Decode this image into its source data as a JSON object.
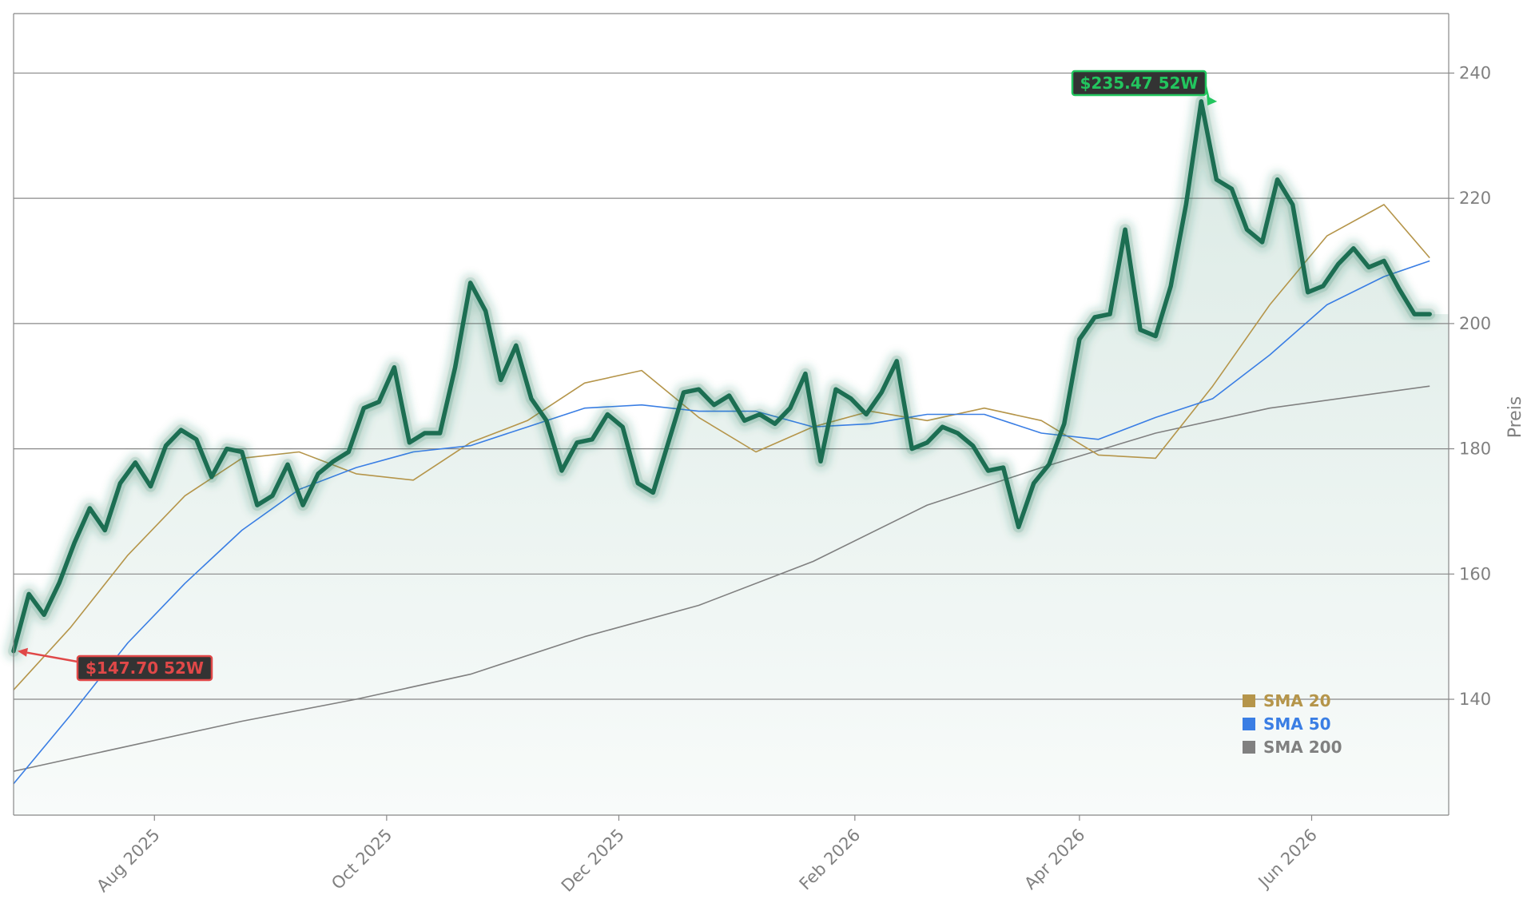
{
  "chart_data": {
    "type": "line",
    "ylabel": "Preis",
    "xlabel": "",
    "ylim": [
      121.5,
      249.5
    ],
    "x_range": [
      "2025-06-25",
      "2026-07-07"
    ],
    "y_ticks": [
      140,
      160,
      180,
      200,
      220,
      240
    ],
    "y_tick_labels": [
      "140",
      "160",
      "180",
      "200",
      "220",
      "240"
    ],
    "x_ticks": [
      "2025-08-01",
      "2025-10-01",
      "2025-12-01",
      "2026-02-01",
      "2026-04-01",
      "2026-06-01"
    ],
    "x_tick_labels": [
      "Aug 2025",
      "Oct 2025",
      "Dec 2025",
      "Feb 2026",
      "Apr 2026",
      "Jun 2026"
    ],
    "grid": "horizontal",
    "legend_position": "bottom-right",
    "last_price": 201.5,
    "colors": {
      "price": "#1c6e52",
      "price_glow": "#1c7a5a",
      "fill": "#1c7a5a",
      "sma20": "#b5954a",
      "sma50": "#3a7ee4",
      "sma200": "#808080",
      "high_marker": "#22c55e",
      "low_marker": "#e04848",
      "label_bg": "#333333",
      "axis": "#888888",
      "grid": "#888888",
      "tick_text": "#808080"
    },
    "annotations": [
      {
        "id": "high",
        "text": "$235.47 52W",
        "x": "2026-05-08",
        "y": 235.47
      },
      {
        "id": "low",
        "text": "$147.70 52W",
        "x": "2025-06-26",
        "y": 147.7
      }
    ],
    "series": [
      {
        "name": "Price",
        "color": "#1c6e52",
        "x": [
          "2025-06-25",
          "2025-06-29",
          "2025-07-03",
          "2025-07-07",
          "2025-07-11",
          "2025-07-15",
          "2025-07-19",
          "2025-07-23",
          "2025-07-27",
          "2025-07-31",
          "2025-08-04",
          "2025-08-08",
          "2025-08-12",
          "2025-08-16",
          "2025-08-20",
          "2025-08-24",
          "2025-08-28",
          "2025-09-01",
          "2025-09-05",
          "2025-09-09",
          "2025-09-13",
          "2025-09-17",
          "2025-09-21",
          "2025-09-25",
          "2025-09-29",
          "2025-10-03",
          "2025-10-07",
          "2025-10-11",
          "2025-10-15",
          "2025-10-19",
          "2025-10-23",
          "2025-10-27",
          "2025-10-31",
          "2025-11-04",
          "2025-11-08",
          "2025-11-12",
          "2025-11-16",
          "2025-11-20",
          "2025-11-24",
          "2025-11-28",
          "2025-12-02",
          "2025-12-06",
          "2025-12-10",
          "2025-12-14",
          "2025-12-18",
          "2025-12-22",
          "2025-12-26",
          "2025-12-30",
          "2026-01-03",
          "2026-01-07",
          "2026-01-11",
          "2026-01-15",
          "2026-01-19",
          "2026-01-23",
          "2026-01-27",
          "2026-01-31",
          "2026-02-04",
          "2026-02-08",
          "2026-02-12",
          "2026-02-16",
          "2026-02-20",
          "2026-02-24",
          "2026-02-28",
          "2026-03-04",
          "2026-03-08",
          "2026-03-12",
          "2026-03-16",
          "2026-03-20",
          "2026-03-24",
          "2026-03-28",
          "2026-04-01",
          "2026-04-05",
          "2026-04-09",
          "2026-04-13",
          "2026-04-17",
          "2026-04-21",
          "2026-04-25",
          "2026-04-29",
          "2026-05-03",
          "2026-05-07",
          "2026-05-11",
          "2026-05-15",
          "2026-05-19",
          "2026-05-23",
          "2026-05-27",
          "2026-05-31",
          "2026-06-04",
          "2026-06-08",
          "2026-06-12",
          "2026-06-16",
          "2026-06-20",
          "2026-06-24",
          "2026-06-28",
          "2026-07-02"
        ],
        "values": [
          147.7,
          156.8,
          153.5,
          158.6,
          165.0,
          170.5,
          167.0,
          174.5,
          177.8,
          174.0,
          180.5,
          183.0,
          181.5,
          175.5,
          180.0,
          179.5,
          171.0,
          172.5,
          177.5,
          171.0,
          176.0,
          178.0,
          179.5,
          186.5,
          187.5,
          193.0,
          181.0,
          182.5,
          182.5,
          193.0,
          206.5,
          202.0,
          191.0,
          196.5,
          188.0,
          184.5,
          176.5,
          181.0,
          181.5,
          185.5,
          183.5,
          174.5,
          173.0,
          181.0,
          189.0,
          189.5,
          187.0,
          188.5,
          184.5,
          185.5,
          184.0,
          186.5,
          192.0,
          178.0,
          189.5,
          188.0,
          185.5,
          189.0,
          194.0,
          180.0,
          181.0,
          183.5,
          182.5,
          180.5,
          176.5,
          177.0,
          167.5,
          174.5,
          177.5,
          184.0,
          197.5,
          201.0,
          201.5,
          215.0,
          199.0,
          198.0,
          206.0,
          219.0,
          235.47,
          223.0,
          221.5,
          215.0,
          213.0,
          223.0,
          219.0,
          205.0,
          206.0,
          209.5,
          212.0,
          209.0,
          210.0,
          205.5,
          201.5,
          201.5
        ]
      },
      {
        "name": "SMA 20",
        "color": "#b5954a",
        "x": [
          "2025-06-25",
          "2025-07-10",
          "2025-07-25",
          "2025-08-09",
          "2025-08-24",
          "2025-09-08",
          "2025-09-23",
          "2025-10-08",
          "2025-10-23",
          "2025-11-07",
          "2025-11-22",
          "2025-12-07",
          "2025-12-22",
          "2026-01-06",
          "2026-01-21",
          "2026-02-05",
          "2026-02-20",
          "2026-03-07",
          "2026-03-22",
          "2026-04-06",
          "2026-04-21",
          "2026-05-06",
          "2026-05-21",
          "2026-06-05",
          "2026-06-20",
          "2026-07-02"
        ],
        "values": [
          141.5,
          151.5,
          163.0,
          172.5,
          178.5,
          179.5,
          176.0,
          175.0,
          181.0,
          184.5,
          190.5,
          192.5,
          185.0,
          179.5,
          183.5,
          186.0,
          184.5,
          186.5,
          184.5,
          179.0,
          178.5,
          190.0,
          203.0,
          214.0,
          219.0,
          210.5
        ]
      },
      {
        "name": "SMA 50",
        "color": "#3a7ee4",
        "x": [
          "2025-06-25",
          "2025-07-10",
          "2025-07-25",
          "2025-08-09",
          "2025-08-24",
          "2025-09-08",
          "2025-09-23",
          "2025-10-08",
          "2025-10-23",
          "2025-11-07",
          "2025-11-22",
          "2025-12-07",
          "2025-12-22",
          "2026-01-06",
          "2026-01-21",
          "2026-02-05",
          "2026-02-20",
          "2026-03-07",
          "2026-03-22",
          "2026-04-06",
          "2026-04-21",
          "2026-05-06",
          "2026-05-21",
          "2026-06-05",
          "2026-06-20",
          "2026-07-02"
        ],
        "values": [
          126.5,
          137.5,
          149.0,
          158.5,
          167.0,
          173.5,
          177.0,
          179.5,
          180.5,
          183.5,
          186.5,
          187.0,
          186.0,
          186.0,
          183.5,
          184.0,
          185.5,
          185.5,
          182.5,
          181.5,
          185.0,
          188.0,
          195.0,
          203.0,
          207.5,
          210.0
        ]
      },
      {
        "name": "SMA 200",
        "color": "#808080",
        "x": [
          "2025-06-25",
          "2025-07-25",
          "2025-08-24",
          "2025-09-23",
          "2025-10-23",
          "2025-11-22",
          "2025-12-22",
          "2026-01-21",
          "2026-02-20",
          "2026-03-22",
          "2026-04-21",
          "2026-05-21",
          "2026-07-02"
        ],
        "values": [
          128.5,
          132.5,
          136.5,
          140.0,
          144.0,
          150.0,
          155.0,
          162.0,
          171.0,
          177.0,
          182.5,
          186.5,
          190.0
        ]
      }
    ]
  }
}
